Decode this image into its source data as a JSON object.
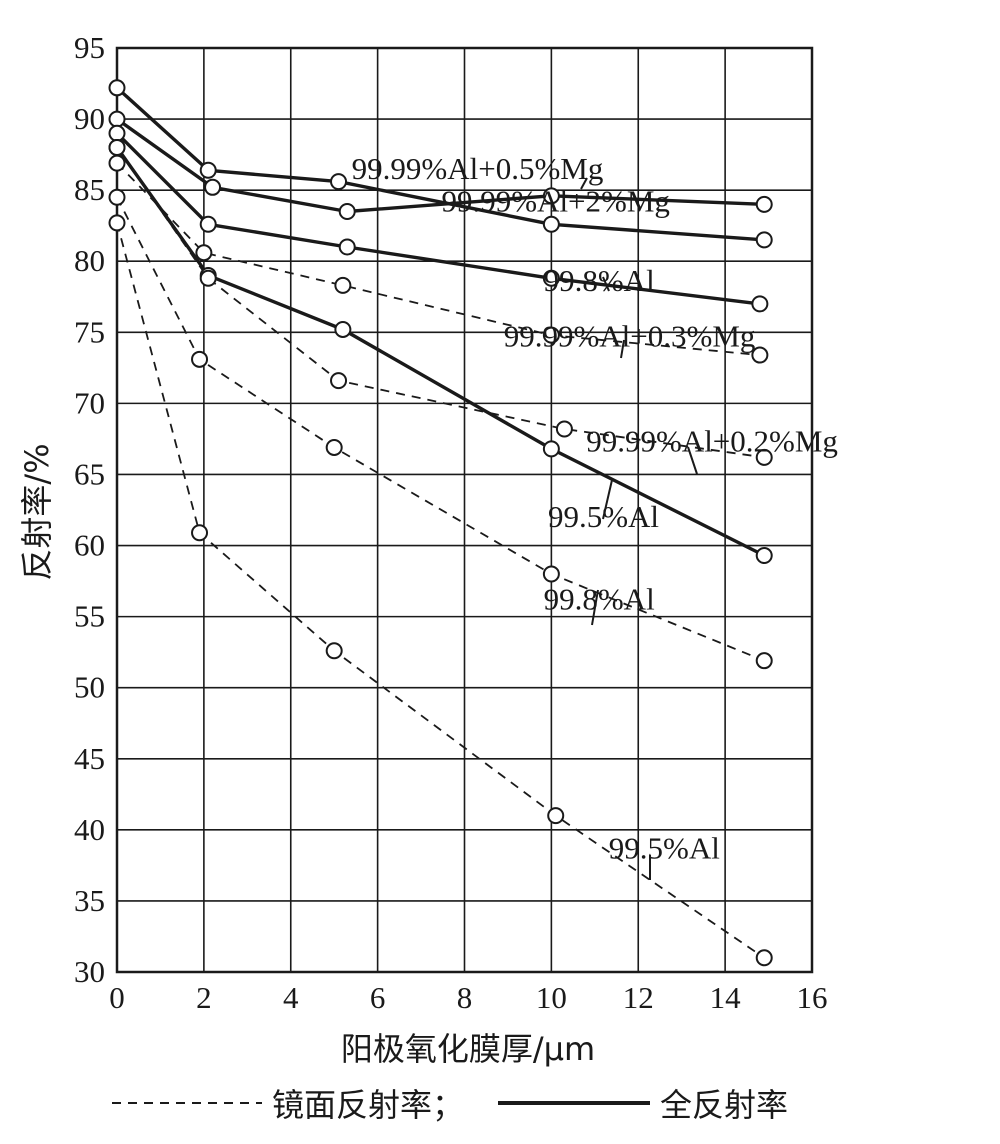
{
  "chart_data": {
    "type": "line",
    "xlabel": "阳极氧化膜厚/μm",
    "ylabel": "反射率/%",
    "xlim": [
      0,
      16
    ],
    "ylim": [
      30,
      95
    ],
    "x_ticks": [
      0,
      2,
      4,
      6,
      8,
      10,
      12,
      14,
      16
    ],
    "y_ticks": [
      30,
      35,
      40,
      45,
      50,
      55,
      60,
      65,
      70,
      75,
      80,
      85,
      90,
      95
    ],
    "grid": true,
    "legend": {
      "placement": "bottom",
      "items": [
        {
          "label": "镜面反射率；",
          "style": "dashed"
        },
        {
          "label": "全反射率",
          "style": "solid"
        }
      ]
    },
    "series": [
      {
        "name": "99.99%Al+0.5%Mg",
        "style": "solid",
        "x": [
          0,
          2.2,
          5.3,
          10,
          14.9
        ],
        "y": [
          90,
          85.2,
          83.5,
          84.6,
          84
        ]
      },
      {
        "name": "99.99%Al+2%Mg",
        "style": "solid",
        "x": [
          0,
          2.1,
          5.1,
          10,
          14.9
        ],
        "y": [
          92.2,
          86.4,
          85.6,
          82.6,
          81.5
        ]
      },
      {
        "name": "99.8%Al",
        "style": "solid",
        "x": [
          0,
          2.1,
          5.3,
          10,
          14.8
        ],
        "y": [
          89,
          82.6,
          81,
          78.8,
          77
        ]
      },
      {
        "name": "99.5%Al",
        "style": "solid",
        "x": [
          0,
          2.1,
          5.2,
          10,
          14.9
        ],
        "y": [
          88,
          79,
          75.2,
          66.8,
          59.3
        ]
      },
      {
        "name": "99.99%Al+0.3%Mg",
        "style": "dashed",
        "x": [
          0,
          2,
          5.2,
          10,
          14.8
        ],
        "y": [
          86.9,
          80.6,
          78.3,
          74.8,
          73.4
        ]
      },
      {
        "name": "99.99%Al+0.2%Mg",
        "style": "dashed",
        "x": [
          0,
          2.1,
          5.1,
          10.3,
          14.9
        ],
        "y": [
          88,
          78.8,
          71.6,
          68.2,
          66.2
        ]
      },
      {
        "name": "99.8%Al",
        "style": "dashed",
        "x": [
          0,
          1.9,
          5,
          10,
          14.9
        ],
        "y": [
          84.5,
          73.1,
          66.9,
          58,
          51.9
        ]
      },
      {
        "name": "99.5%Al",
        "style": "dashed",
        "x": [
          0,
          1.9,
          5,
          10.1,
          14.9
        ],
        "y": [
          82.7,
          60.9,
          52.6,
          41,
          31
        ]
      }
    ],
    "annotations": [
      {
        "text": "99.99%Al+0.5%Mg",
        "at": [
          8.3,
          85.8
        ]
      },
      {
        "text": "99.99%Al+2%Mg",
        "at": [
          10.1,
          83.5
        ]
      },
      {
        "text": "99.8%Al",
        "at": [
          11.1,
          77.9
        ]
      },
      {
        "text": "99.99%Al+0.3%Mg",
        "at": [
          11.8,
          74
        ]
      },
      {
        "text": "99.99%Al+0.2%Mg",
        "at": [
          13.7,
          66.6
        ]
      },
      {
        "text": "99.5%Al",
        "at": [
          11.2,
          61.3
        ]
      },
      {
        "text": "99.8%Al",
        "at": [
          11.1,
          55.5
        ]
      },
      {
        "text": "99.5%Al",
        "at": [
          12.6,
          38
        ]
      }
    ],
    "colors": {
      "line": "#1a1a1a",
      "grid": "#1a1a1a",
      "marker_fill": "#ffffff"
    }
  }
}
